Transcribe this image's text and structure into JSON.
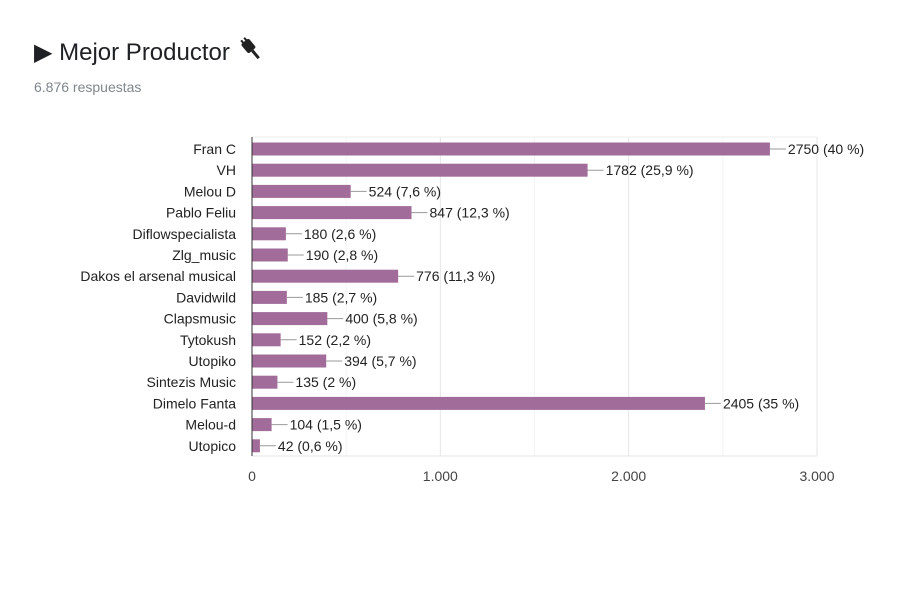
{
  "header": {
    "title": "▶ Mejor Productor",
    "title_icon": "electric-plug-icon",
    "responses": "6.876 respuestas"
  },
  "chart_data": {
    "type": "bar",
    "orientation": "horizontal",
    "title": "Mejor Productor",
    "categories": [
      "Fran C",
      "VH",
      "Melou D",
      "Pablo Feliu",
      "Diflowspecialista",
      "Zlg_music",
      "Dakos el arsenal musical",
      "Davidwild",
      "Clapsmusic",
      "Tytokush",
      "Utopiko",
      "Sintezis Music",
      "Dimelo Fanta",
      "Melou-d",
      "Utopico"
    ],
    "values": [
      2750,
      1782,
      524,
      847,
      180,
      190,
      776,
      185,
      400,
      152,
      394,
      135,
      2405,
      104,
      42
    ],
    "data_labels": [
      "2750 (40 %)",
      "1782 (25,9 %)",
      "524 (7,6 %)",
      "847 (12,3 %)",
      "180 (2,6 %)",
      "190 (2,8 %)",
      "776 (11,3 %)",
      "185 (2,7 %)",
      "400 (5,8 %)",
      "152 (2,2 %)",
      "394 (5,7 %)",
      "135 (2 %)",
      "2405 (35 %)",
      "104 (1,5 %)",
      "42 (0,6 %)"
    ],
    "xlim": [
      0,
      3000
    ],
    "x_ticks": [
      0,
      1000,
      2000,
      3000
    ],
    "x_tick_labels": [
      "0",
      "1.000",
      "2.000",
      "3.000"
    ],
    "grid": true,
    "bar_color": "#a26c9a"
  }
}
